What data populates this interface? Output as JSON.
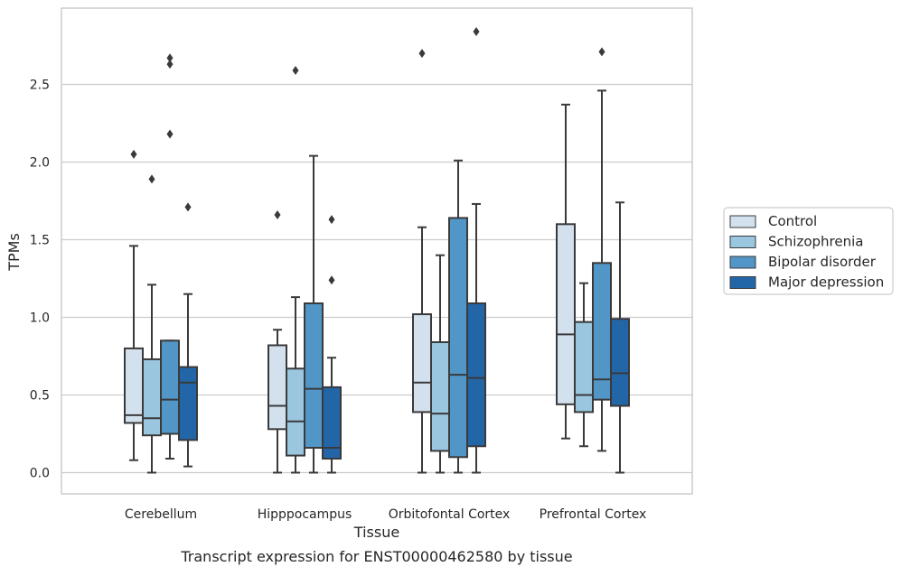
{
  "colors": {
    "grid": "#cccccc",
    "frame": "#cccccc",
    "box_edge": "#3a3a3a",
    "text": "#262626"
  },
  "chart_data": {
    "type": "box",
    "title": "",
    "caption": "Transcript expression for ENST00000462580 by tissue",
    "xlabel": "Tissue",
    "ylabel": "TPMs",
    "ylim": [
      -0.14,
      3.0
    ],
    "yticks": [
      0.0,
      0.5,
      1.0,
      1.5,
      2.0,
      2.5
    ],
    "ytick_labels": [
      "0.0",
      "0.5",
      "1.0",
      "1.5",
      "2.0",
      "2.5"
    ],
    "grid": "horizontal",
    "legend_position": "right",
    "categories": [
      "Cerebellum",
      "Hipppocampus",
      "Orbitofontal Cortex",
      "Prefrontal Cortex"
    ],
    "series": [
      {
        "name": "Control",
        "color": "#d3e1ef",
        "boxes": [
          {
            "whislo": 0.08,
            "q1": 0.32,
            "med": 0.37,
            "q3": 0.8,
            "whishi": 1.46,
            "fliers": [
              2.05
            ]
          },
          {
            "whislo": 0.0,
            "q1": 0.28,
            "med": 0.43,
            "q3": 0.82,
            "whishi": 0.92,
            "fliers": [
              1.66
            ]
          },
          {
            "whislo": 0.0,
            "q1": 0.39,
            "med": 0.58,
            "q3": 1.02,
            "whishi": 1.58,
            "fliers": [
              2.7
            ]
          },
          {
            "whislo": 0.22,
            "q1": 0.44,
            "med": 0.89,
            "q3": 1.6,
            "whishi": 2.37,
            "fliers": []
          }
        ]
      },
      {
        "name": "Schizophrenia",
        "color": "#9ac6df",
        "boxes": [
          {
            "whislo": 0.0,
            "q1": 0.24,
            "med": 0.35,
            "q3": 0.73,
            "whishi": 1.21,
            "fliers": [
              1.89
            ]
          },
          {
            "whislo": 0.0,
            "q1": 0.11,
            "med": 0.33,
            "q3": 0.67,
            "whishi": 1.13,
            "fliers": [
              2.59
            ]
          },
          {
            "whislo": 0.0,
            "q1": 0.14,
            "med": 0.38,
            "q3": 0.84,
            "whishi": 1.4,
            "fliers": []
          },
          {
            "whislo": 0.17,
            "q1": 0.39,
            "med": 0.5,
            "q3": 0.97,
            "whishi": 1.22,
            "fliers": []
          }
        ]
      },
      {
        "name": "Bipolar disorder",
        "color": "#5296c7",
        "boxes": [
          {
            "whislo": 0.09,
            "q1": 0.25,
            "med": 0.47,
            "q3": 0.85,
            "whishi": 0.85,
            "fliers": [
              2.18,
              2.63,
              2.67
            ]
          },
          {
            "whislo": 0.0,
            "q1": 0.16,
            "med": 0.54,
            "q3": 1.09,
            "whishi": 2.04,
            "fliers": []
          },
          {
            "whislo": 0.0,
            "q1": 0.1,
            "med": 0.63,
            "q3": 1.64,
            "whishi": 2.01,
            "fliers": []
          },
          {
            "whislo": 0.14,
            "q1": 0.47,
            "med": 0.6,
            "q3": 1.35,
            "whishi": 2.46,
            "fliers": [
              2.71
            ]
          }
        ]
      },
      {
        "name": "Major depression",
        "color": "#2366a8",
        "boxes": [
          {
            "whislo": 0.04,
            "q1": 0.21,
            "med": 0.58,
            "q3": 0.68,
            "whishi": 1.15,
            "fliers": [
              1.71
            ]
          },
          {
            "whislo": 0.0,
            "q1": 0.09,
            "med": 0.16,
            "q3": 0.55,
            "whishi": 0.74,
            "fliers": [
              1.24,
              1.63
            ]
          },
          {
            "whislo": 0.0,
            "q1": 0.17,
            "med": 0.61,
            "q3": 1.09,
            "whishi": 1.73,
            "fliers": [
              2.84
            ]
          },
          {
            "whislo": 0.0,
            "q1": 0.43,
            "med": 0.64,
            "q3": 0.99,
            "whishi": 1.74,
            "fliers": []
          }
        ]
      }
    ]
  }
}
